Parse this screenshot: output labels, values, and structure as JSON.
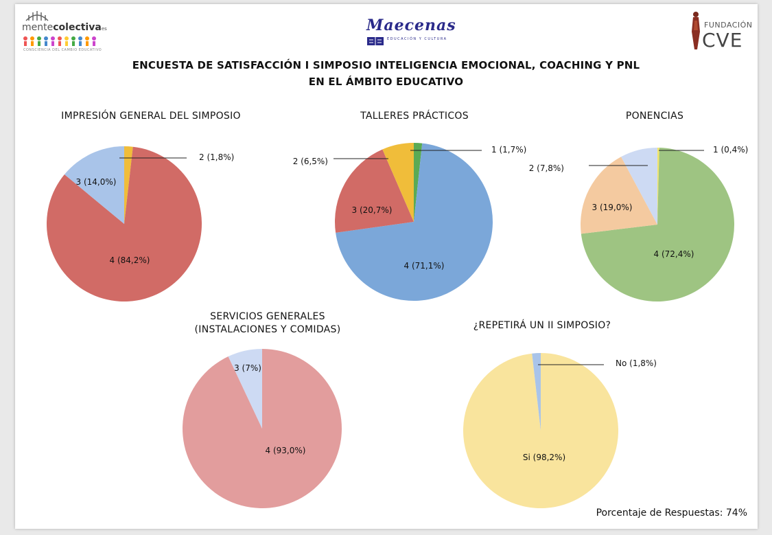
{
  "header": {
    "title_line1": "ENCUESTA DE SATISFACCIÓN I SIMPOSIO INTELIGENCIA EMOCIONAL, COACHING Y PNL",
    "title_line2": "EN EL ÁMBITO EDUCATIVO",
    "logos": {
      "left": {
        "text_a": "mente",
        "text_b": "colectiva",
        "suffix": "es",
        "tagline": "CONSCIENCIA DEL CAMBIO EDUCATIVO",
        "icon": "people-row-icon"
      },
      "center": {
        "text": "Maecenas",
        "tagline": "EDUCACIÓN Y CULTURA",
        "icon": "book-icon"
      },
      "right": {
        "text_a": "FUNDACIÓN",
        "text_b": "CVE",
        "icon": "statue-icon"
      }
    }
  },
  "footer": {
    "response_rate": "Porcentaje de Respuestas: 74%"
  },
  "chart_data": [
    {
      "type": "pie",
      "title": "IMPRESIÓN GENERAL DEL SIMPOSIO",
      "slices": [
        {
          "label": "2 (1,8%)",
          "value": 1.8,
          "color": "#f0bd3a"
        },
        {
          "label": "4 (84,2%)",
          "value": 84.2,
          "color": "#d16b66"
        },
        {
          "label": "3 (14,0%)",
          "value": 14.0,
          "color": "#a9c4e9"
        }
      ]
    },
    {
      "type": "pie",
      "title": "TALLERES PRÁCTICOS",
      "slices": [
        {
          "label": "1 (1,7%)",
          "value": 1.7,
          "color": "#5aaa55"
        },
        {
          "label": "4 (71,1%)",
          "value": 71.1,
          "color": "#7ba7d9"
        },
        {
          "label": "3 (20,7%)",
          "value": 20.7,
          "color": "#d16b66"
        },
        {
          "label": "2 (6,5%)",
          "value": 6.5,
          "color": "#f0bd3a"
        }
      ]
    },
    {
      "type": "pie",
      "title": "PONENCIAS",
      "slices": [
        {
          "label": "1 (0,4%)",
          "value": 0.4,
          "color": "#f3e56a"
        },
        {
          "label": "4 (72,4%)",
          "value": 72.4,
          "color": "#9ec482"
        },
        {
          "label": "3 (19,0%)",
          "value": 19.0,
          "color": "#f4caa0"
        },
        {
          "label": "2 (7,8%)",
          "value": 7.8,
          "color": "#cddaf3"
        }
      ]
    },
    {
      "type": "pie",
      "title_line1": "SERVICIOS GENERALES",
      "title_line2": "(INSTALACIONES Y COMIDAS)",
      "slices": [
        {
          "label": "4 (93,0%)",
          "value": 93.0,
          "color": "#e29d9d"
        },
        {
          "label": "3 (7%)",
          "value": 7.0,
          "color": "#cddaf3"
        }
      ]
    },
    {
      "type": "pie",
      "title": "¿REPETIRÁ UN II SIMPOSIO?",
      "slices": [
        {
          "label": "Si (98,2%)",
          "value": 98.2,
          "color": "#f9e49d"
        },
        {
          "label": "No (1,8%)",
          "value": 1.8,
          "color": "#a9c4e9"
        }
      ]
    }
  ]
}
